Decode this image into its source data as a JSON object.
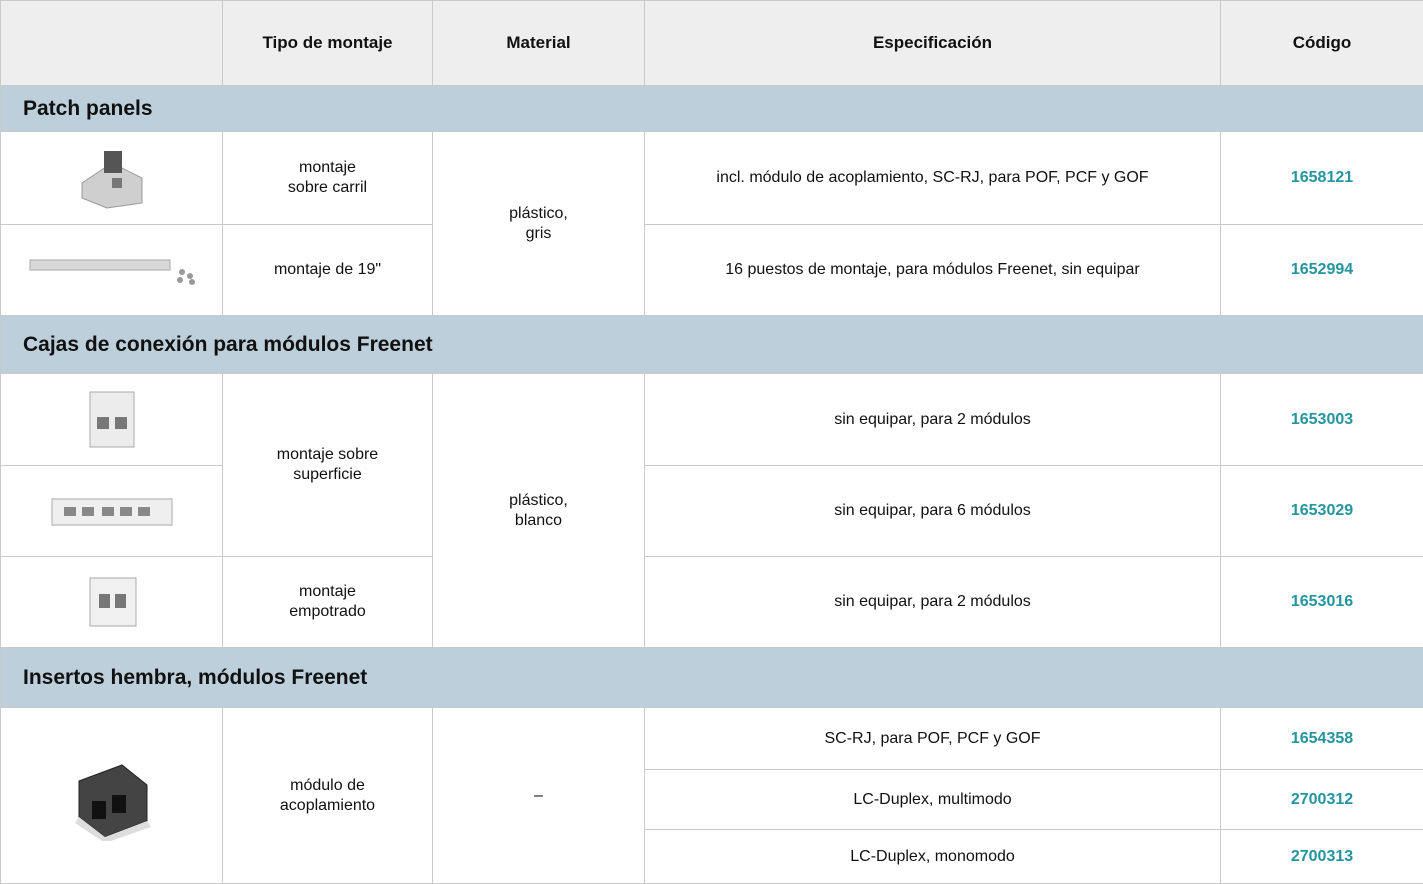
{
  "table": {
    "headers": [
      "Tipo de montaje",
      "Material",
      "Especificación",
      "Código"
    ],
    "sections": [
      {
        "title": "Patch panels",
        "material": "plástico,\ngris",
        "mountings": [
          {
            "label": "montaje\nsobre carril",
            "rows": [
              {
                "spec": "incl. módulo de acoplamiento, SC-RJ, para POF, PCF y GOF",
                "code": "1658121"
              }
            ]
          },
          {
            "label": "montaje de 19\"",
            "rows": [
              {
                "spec": "16 puestos de montaje, para módulos Freenet, sin equipar",
                "code": "1652994"
              }
            ]
          }
        ]
      },
      {
        "title": "Cajas de conexión para módulos Freenet",
        "material": "plástico,\nblanco",
        "mountings": [
          {
            "label": "montaje sobre\nsuperficie",
            "rows": [
              {
                "spec": "sin equipar, para 2 módulos",
                "code": "1653003"
              },
              {
                "spec": "sin equipar, para 6 módulos",
                "code": "1653029"
              }
            ]
          },
          {
            "label": "montaje\nempotrado",
            "rows": [
              {
                "spec": "sin equipar, para 2 módulos",
                "code": "1653016"
              }
            ]
          }
        ]
      },
      {
        "title": "Insertos hembra, módulos Freenet",
        "material": "–",
        "mountings": [
          {
            "label": "módulo de\nacoplamiento",
            "rows": [
              {
                "spec": "SC-RJ, para POF, PCF y GOF",
                "code": "1654358"
              },
              {
                "spec": "LC-Duplex, multimodo",
                "code": "2700312"
              },
              {
                "spec": "LC-Duplex, monomodo",
                "code": "2700313"
              }
            ]
          }
        ]
      }
    ]
  }
}
